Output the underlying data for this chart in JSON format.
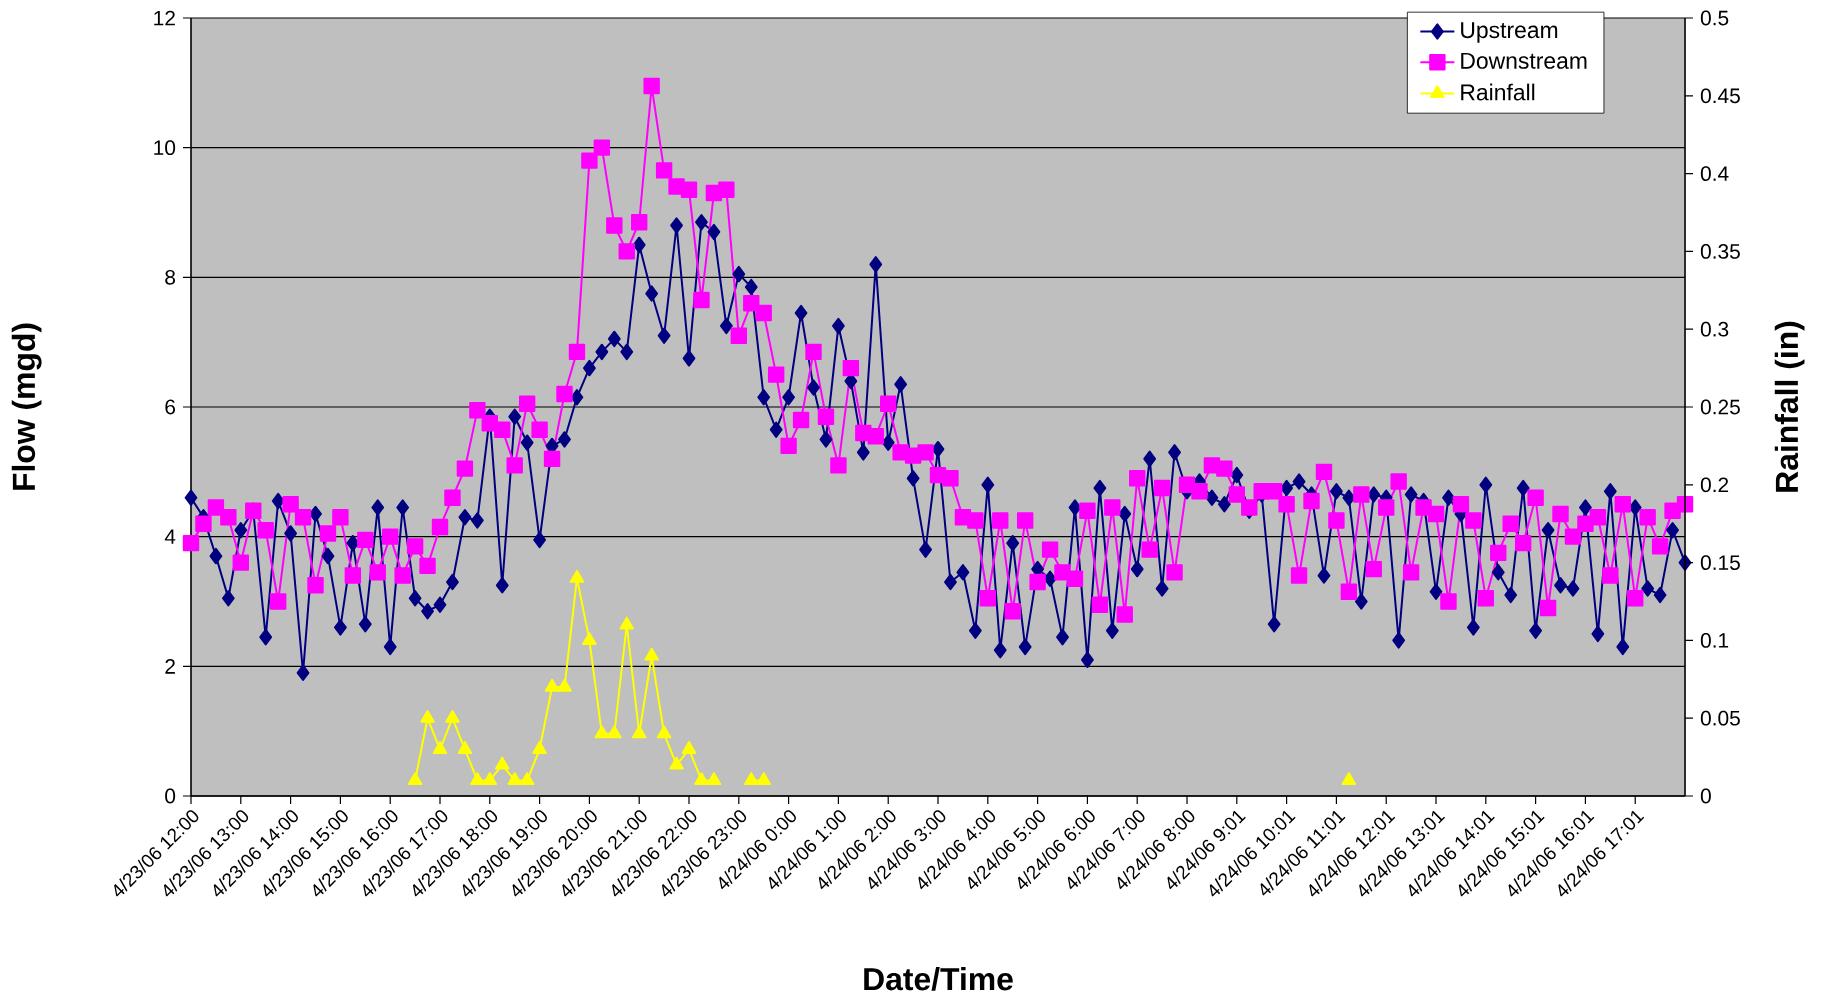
{
  "chart_data": {
    "type": "line",
    "xlabel": "Date/Time",
    "ylabel": "Flow (mgd)",
    "y2label": "Rainfall (in)",
    "categories": [
      "4/23/06 12:00",
      null,
      null,
      null,
      "4/23/06 13:00",
      null,
      null,
      null,
      "4/23/06 14:00",
      null,
      null,
      null,
      "4/23/06 15:00",
      null,
      null,
      null,
      "4/23/06 16:00",
      null,
      null,
      null,
      "4/23/06 17:00",
      null,
      null,
      null,
      "4/23/06 18:00",
      null,
      null,
      null,
      "4/23/06 19:00",
      null,
      null,
      null,
      "4/23/06 20:00",
      null,
      null,
      null,
      "4/23/06 21:00",
      null,
      null,
      null,
      "4/23/06 22:00",
      null,
      null,
      null,
      "4/23/06 23:00",
      null,
      null,
      null,
      "4/24/06 0:00",
      null,
      null,
      null,
      "4/24/06 1:00",
      null,
      null,
      null,
      "4/24/06 2:00",
      null,
      null,
      null,
      "4/24/06 3:00",
      null,
      null,
      null,
      "4/24/06 4:00",
      null,
      null,
      null,
      "4/24/06 5:00",
      null,
      null,
      null,
      "4/24/06 6:00",
      null,
      null,
      null,
      "4/24/06 7:00",
      null,
      null,
      null,
      "4/24/06 8:00",
      null,
      null,
      null,
      "4/24/06 9:01",
      null,
      null,
      null,
      "4/24/06 10:01",
      null,
      null,
      null,
      "4/24/06 11:01",
      null,
      null,
      null,
      "4/24/06 12:01",
      null,
      null,
      null,
      "4/24/06 13:01",
      null,
      null,
      null,
      "4/24/06 14:01",
      null,
      null,
      null,
      "4/24/06 15:01",
      null,
      null,
      null,
      "4/24/06 16:01",
      null,
      null,
      null,
      "4/24/06 17:01",
      null,
      null,
      null,
      null
    ],
    "series": [
      {
        "name": "Upstream",
        "color": "#000080",
        "marker": "diamond",
        "values": [
          4.6,
          4.3,
          3.7,
          3.05,
          4.1,
          4.4,
          2.45,
          4.55,
          4.05,
          1.9,
          4.35,
          3.7,
          2.6,
          3.9,
          2.65,
          4.45,
          2.3,
          4.45,
          3.05,
          2.85,
          2.95,
          3.3,
          4.3,
          4.25,
          5.85,
          3.25,
          5.85,
          5.45,
          3.95,
          5.4,
          5.5,
          6.15,
          6.6,
          6.85,
          7.05,
          6.85,
          8.5,
          7.75,
          7.1,
          8.8,
          6.75,
          8.85,
          8.7,
          7.25,
          8.05,
          7.85,
          6.15,
          5.65,
          6.15,
          7.45,
          6.3,
          5.5,
          7.25,
          6.4,
          5.3,
          8.2,
          5.45,
          6.35,
          4.9,
          3.8,
          5.35,
          3.3,
          3.45,
          2.55,
          4.8,
          2.25,
          3.9,
          2.3,
          3.5,
          3.35,
          2.45,
          4.45,
          2.1,
          4.75,
          2.55,
          4.35,
          3.5,
          5.2,
          3.2,
          5.3,
          4.7,
          4.85,
          4.6,
          4.5,
          4.95,
          4.4,
          4.65,
          2.65,
          4.75,
          4.85,
          4.65,
          3.4,
          4.7,
          4.6,
          3.0,
          4.65,
          4.6,
          2.4,
          4.65,
          4.55,
          3.15,
          4.6,
          4.35,
          2.6,
          4.8,
          3.45,
          3.1,
          4.75,
          2.55,
          4.1,
          3.25,
          3.2,
          4.45,
          2.5,
          4.7,
          2.3,
          4.45,
          3.2,
          3.1,
          4.1,
          3.6
        ]
      },
      {
        "name": "Downstream",
        "color": "#ff00ff",
        "marker": "square",
        "values": [
          3.9,
          4.2,
          4.45,
          4.3,
          3.6,
          4.4,
          4.1,
          3.0,
          4.5,
          4.3,
          3.25,
          4.05,
          4.3,
          3.4,
          3.95,
          3.45,
          4.0,
          3.4,
          3.85,
          3.55,
          4.15,
          4.6,
          5.05,
          5.95,
          5.75,
          5.65,
          5.1,
          6.05,
          5.65,
          5.2,
          6.2,
          6.85,
          9.8,
          10.0,
          8.8,
          8.4,
          8.85,
          10.95,
          9.65,
          9.4,
          9.35,
          7.65,
          9.3,
          9.35,
          7.1,
          7.6,
          7.45,
          6.5,
          5.4,
          5.8,
          6.85,
          5.85,
          5.1,
          6.6,
          5.6,
          5.55,
          6.05,
          5.3,
          5.25,
          5.3,
          4.95,
          4.9,
          4.3,
          4.25,
          3.05,
          4.25,
          2.85,
          4.25,
          3.3,
          3.8,
          3.45,
          3.35,
          4.4,
          2.95,
          4.45,
          2.8,
          4.9,
          3.8,
          4.75,
          3.45,
          4.8,
          4.7,
          5.1,
          5.05,
          4.65,
          4.45,
          4.7,
          4.7,
          4.5,
          3.4,
          4.55,
          5.0,
          4.25,
          3.15,
          4.65,
          3.5,
          4.45,
          4.85,
          3.45,
          4.45,
          4.35,
          3.0,
          4.5,
          4.25,
          3.05,
          3.75,
          4.2,
          3.9,
          4.6,
          2.9,
          4.35,
          4.0,
          4.2,
          4.3,
          3.4,
          4.5,
          3.05,
          4.3,
          3.85,
          4.4,
          4.5
        ]
      },
      {
        "name": "Rainfall",
        "color": "#ffff00",
        "marker": "triangle",
        "axis": "y2",
        "values": [
          null,
          null,
          null,
          null,
          null,
          null,
          null,
          null,
          null,
          null,
          null,
          null,
          null,
          null,
          null,
          null,
          null,
          null,
          0.01,
          0.05,
          0.03,
          0.05,
          0.03,
          0.01,
          0.01,
          0.02,
          0.01,
          0.01,
          0.03,
          0.07,
          0.07,
          0.14,
          0.1,
          0.04,
          0.04,
          0.11,
          0.04,
          0.09,
          0.04,
          0.02,
          0.03,
          0.01,
          0.01,
          null,
          null,
          0.01,
          0.01,
          null,
          null,
          null,
          null,
          null,
          null,
          null,
          null,
          null,
          null,
          null,
          null,
          null,
          null,
          null,
          null,
          null,
          null,
          null,
          null,
          null,
          null,
          null,
          null,
          null,
          null,
          null,
          null,
          null,
          null,
          null,
          null,
          null,
          null,
          null,
          null,
          null,
          null,
          null,
          null,
          null,
          null,
          null,
          null,
          null,
          null,
          0.01,
          null,
          null,
          null,
          null,
          null,
          null,
          null,
          null,
          null,
          null,
          null,
          null,
          null,
          null,
          null,
          null,
          null,
          null,
          null,
          null,
          null,
          null,
          null,
          null,
          null,
          null,
          null
        ]
      }
    ],
    "ylim": [
      0,
      12
    ],
    "yticks": [
      0,
      2,
      4,
      6,
      8,
      10,
      12
    ],
    "y2lim": [
      0,
      0.5
    ],
    "y2ticks": [
      0,
      0.05,
      0.1,
      0.15,
      0.2,
      0.25,
      0.3,
      0.35,
      0.4,
      0.45,
      0.5
    ],
    "grid": "y",
    "legend": "top right"
  }
}
